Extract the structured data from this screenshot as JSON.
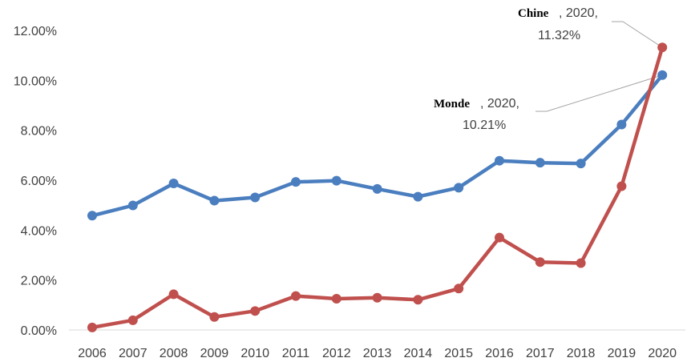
{
  "chart_data": {
    "type": "line",
    "title": "",
    "xlabel": "",
    "ylabel": "",
    "ylim": [
      0,
      12
    ],
    "y_tick_values": [
      0,
      2,
      4,
      6,
      8,
      10,
      12
    ],
    "y_tick_labels": [
      "0.00%",
      "2.00%",
      "4.00%",
      "6.00%",
      "8.00%",
      "10.00%",
      "12.00%"
    ],
    "categories": [
      "2006",
      "2007",
      "2008",
      "2009",
      "2010",
      "2011",
      "2012",
      "2013",
      "2014",
      "2015",
      "2016",
      "2017",
      "2018",
      "2019",
      "2020"
    ],
    "grid": false,
    "legend": "none",
    "series": [
      {
        "name": "Monde",
        "color": "#4a7ebf",
        "values": [
          4.58,
          4.99,
          5.87,
          5.18,
          5.31,
          5.93,
          5.98,
          5.65,
          5.34,
          5.7,
          6.78,
          6.7,
          6.67,
          8.23,
          10.21
        ]
      },
      {
        "name": "Chine",
        "color": "#c0504d",
        "values": [
          0.1,
          0.39,
          1.43,
          0.52,
          0.76,
          1.36,
          1.25,
          1.29,
          1.21,
          1.66,
          3.7,
          2.72,
          2.68,
          5.76,
          11.32
        ]
      }
    ],
    "annotations": [
      {
        "series": "Chine",
        "name": "Chine",
        "rest1": ", 2020,",
        "rest2": "11.32%",
        "year": "2020"
      },
      {
        "series": "Monde",
        "name": "Monde",
        "rest1": ", 2020,",
        "rest2": "10.21%",
        "year": "2020"
      }
    ]
  }
}
